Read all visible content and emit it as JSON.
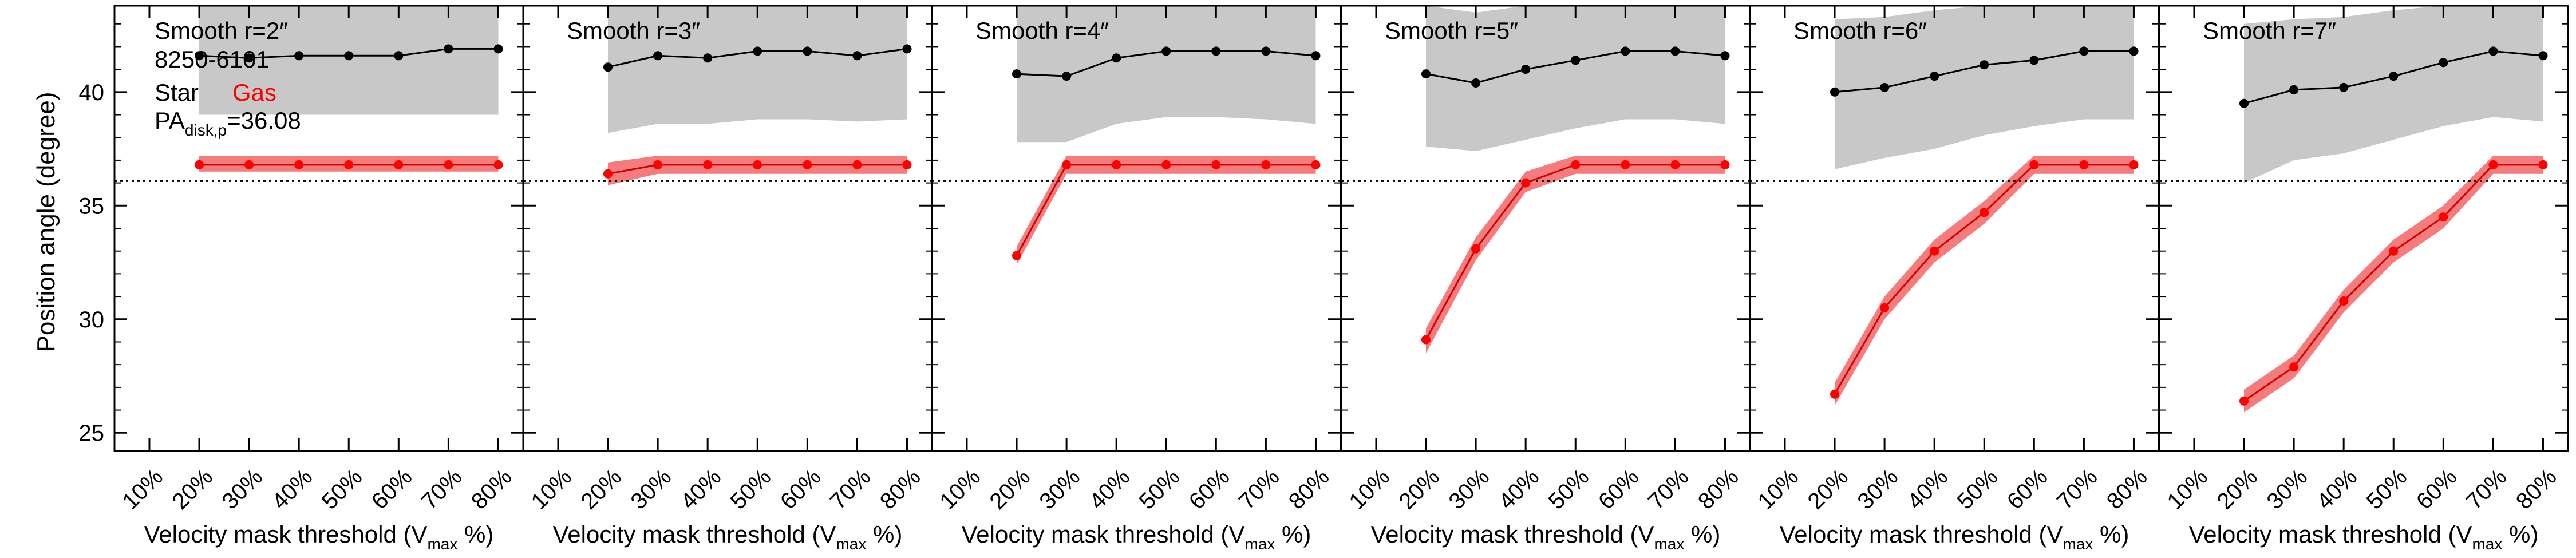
{
  "figure": {
    "ylabel": "Position angle (degree)",
    "xlabel_prefix": "Velocity mask threshold (V",
    "xlabel_sub": "max",
    "xlabel_suffix": " %)",
    "id": "8250-6101",
    "legend_star": "Star",
    "legend_gas": "Gas",
    "pa_prefix": "PA",
    "pa_sub": "disk,p",
    "pa_value": "=36.08"
  },
  "colors": {
    "star": "#000000",
    "star_band": "#c8c8c8",
    "gas": "#ff0000",
    "gas_band": "#f47c7c",
    "reference": "#000000"
  },
  "chart_data": {
    "type": "line",
    "x": [
      10,
      20,
      30,
      40,
      50,
      60,
      70,
      80
    ],
    "x_tick_labels": [
      "10%",
      "20%",
      "30%",
      "40%",
      "50%",
      "60%",
      "70%",
      "80%"
    ],
    "xlim": [
      3,
      85
    ],
    "ylim": [
      24.2,
      43.8
    ],
    "y_ticks": [
      25,
      30,
      35,
      40
    ],
    "reference_line": 36.08,
    "grid": false,
    "panels": [
      {
        "title": "Smooth r=2″",
        "star": {
          "x": [
            20,
            30,
            40,
            50,
            60,
            70,
            80
          ],
          "y": [
            41.6,
            41.5,
            41.6,
            41.6,
            41.6,
            41.9,
            41.9
          ],
          "band_low": [
            39.0,
            39.0,
            39.0,
            39.0,
            39.0,
            39.0,
            39.0
          ],
          "band_high": [
            43.8,
            43.8,
            43.8,
            43.8,
            43.8,
            43.8,
            43.8
          ]
        },
        "gas": {
          "x": [
            20,
            30,
            40,
            50,
            60,
            70,
            80
          ],
          "y": [
            36.8,
            36.8,
            36.8,
            36.8,
            36.8,
            36.8,
            36.8
          ],
          "band_low": [
            36.5,
            36.5,
            36.5,
            36.5,
            36.5,
            36.5,
            36.5
          ],
          "band_high": [
            37.2,
            37.2,
            37.2,
            37.2,
            37.2,
            37.2,
            37.2
          ]
        }
      },
      {
        "title": "Smooth r=3″",
        "star": {
          "x": [
            20,
            30,
            40,
            50,
            60,
            70,
            80
          ],
          "y": [
            41.1,
            41.6,
            41.5,
            41.8,
            41.8,
            41.6,
            41.9
          ],
          "band_low": [
            38.2,
            38.6,
            38.6,
            38.8,
            38.8,
            38.7,
            38.8
          ],
          "band_high": [
            43.8,
            43.8,
            43.8,
            43.8,
            43.8,
            43.8,
            43.8
          ]
        },
        "gas": {
          "x": [
            20,
            30,
            40,
            50,
            60,
            70,
            80
          ],
          "y": [
            36.4,
            36.8,
            36.8,
            36.8,
            36.8,
            36.8,
            36.8
          ],
          "band_low": [
            35.9,
            36.4,
            36.4,
            36.4,
            36.4,
            36.4,
            36.4
          ],
          "band_high": [
            36.9,
            37.2,
            37.2,
            37.2,
            37.2,
            37.2,
            37.2
          ]
        }
      },
      {
        "title": "Smooth r=4″",
        "star": {
          "x": [
            20,
            30,
            40,
            50,
            60,
            70,
            80
          ],
          "y": [
            40.8,
            40.7,
            41.5,
            41.8,
            41.8,
            41.8,
            41.6
          ],
          "band_low": [
            37.8,
            37.8,
            38.6,
            38.9,
            38.9,
            38.8,
            38.6
          ],
          "band_high": [
            43.8,
            43.8,
            43.8,
            43.8,
            43.8,
            43.8,
            43.8
          ]
        },
        "gas": {
          "x": [
            20,
            30,
            40,
            50,
            60,
            70,
            80
          ],
          "y": [
            32.8,
            36.8,
            36.8,
            36.8,
            36.8,
            36.8,
            36.8
          ],
          "band_low": [
            32.4,
            36.4,
            36.4,
            36.4,
            36.4,
            36.4,
            36.4
          ],
          "band_high": [
            33.2,
            37.2,
            37.2,
            37.2,
            37.2,
            37.2,
            37.2
          ]
        }
      },
      {
        "title": "Smooth r=5″",
        "star": {
          "x": [
            20,
            30,
            40,
            50,
            60,
            70,
            80
          ],
          "y": [
            40.8,
            40.4,
            41.0,
            41.4,
            41.8,
            41.8,
            41.6
          ],
          "band_low": [
            37.6,
            37.4,
            37.9,
            38.4,
            38.8,
            38.8,
            38.6
          ],
          "band_high": [
            43.8,
            43.5,
            43.8,
            43.8,
            43.8,
            43.8,
            43.8
          ]
        },
        "gas": {
          "x": [
            20,
            30,
            40,
            50,
            60,
            70,
            80
          ],
          "y": [
            29.1,
            33.1,
            36.0,
            36.8,
            36.8,
            36.8,
            36.8
          ],
          "band_low": [
            28.5,
            32.6,
            35.6,
            36.4,
            36.4,
            36.4,
            36.4
          ],
          "band_high": [
            29.6,
            33.6,
            36.5,
            37.2,
            37.2,
            37.2,
            37.2
          ]
        }
      },
      {
        "title": "Smooth r=6″",
        "star": {
          "x": [
            20,
            30,
            40,
            50,
            60,
            70,
            80
          ],
          "y": [
            40.0,
            40.2,
            40.7,
            41.2,
            41.4,
            41.8,
            41.8
          ],
          "band_low": [
            36.6,
            37.1,
            37.5,
            38.1,
            38.5,
            38.8,
            38.8
          ],
          "band_high": [
            43.2,
            43.3,
            43.6,
            43.8,
            43.8,
            43.8,
            43.8
          ]
        },
        "gas": {
          "x": [
            20,
            30,
            40,
            50,
            60,
            70,
            80
          ],
          "y": [
            26.7,
            30.5,
            33.0,
            34.7,
            36.8,
            36.8,
            36.8
          ],
          "band_low": [
            26.2,
            30.0,
            32.5,
            34.2,
            36.4,
            36.4,
            36.4
          ],
          "band_high": [
            27.2,
            31.0,
            33.5,
            35.2,
            37.2,
            37.2,
            37.2
          ]
        }
      },
      {
        "title": "Smooth r=7″",
        "star": {
          "x": [
            20,
            30,
            40,
            50,
            60,
            70,
            80
          ],
          "y": [
            39.5,
            40.1,
            40.2,
            40.7,
            41.3,
            41.8,
            41.6
          ],
          "band_low": [
            36.0,
            37.0,
            37.3,
            37.9,
            38.5,
            38.9,
            38.7
          ],
          "band_high": [
            43.0,
            43.2,
            43.3,
            43.6,
            43.8,
            43.8,
            43.8
          ]
        },
        "gas": {
          "x": [
            20,
            30,
            40,
            50,
            60,
            70,
            80
          ],
          "y": [
            26.4,
            27.9,
            30.8,
            33.0,
            34.5,
            36.8,
            36.8
          ],
          "band_low": [
            25.9,
            27.4,
            30.3,
            32.5,
            34.0,
            36.4,
            36.4
          ],
          "band_high": [
            26.9,
            28.4,
            31.3,
            33.5,
            35.0,
            37.2,
            37.2
          ]
        }
      }
    ]
  }
}
